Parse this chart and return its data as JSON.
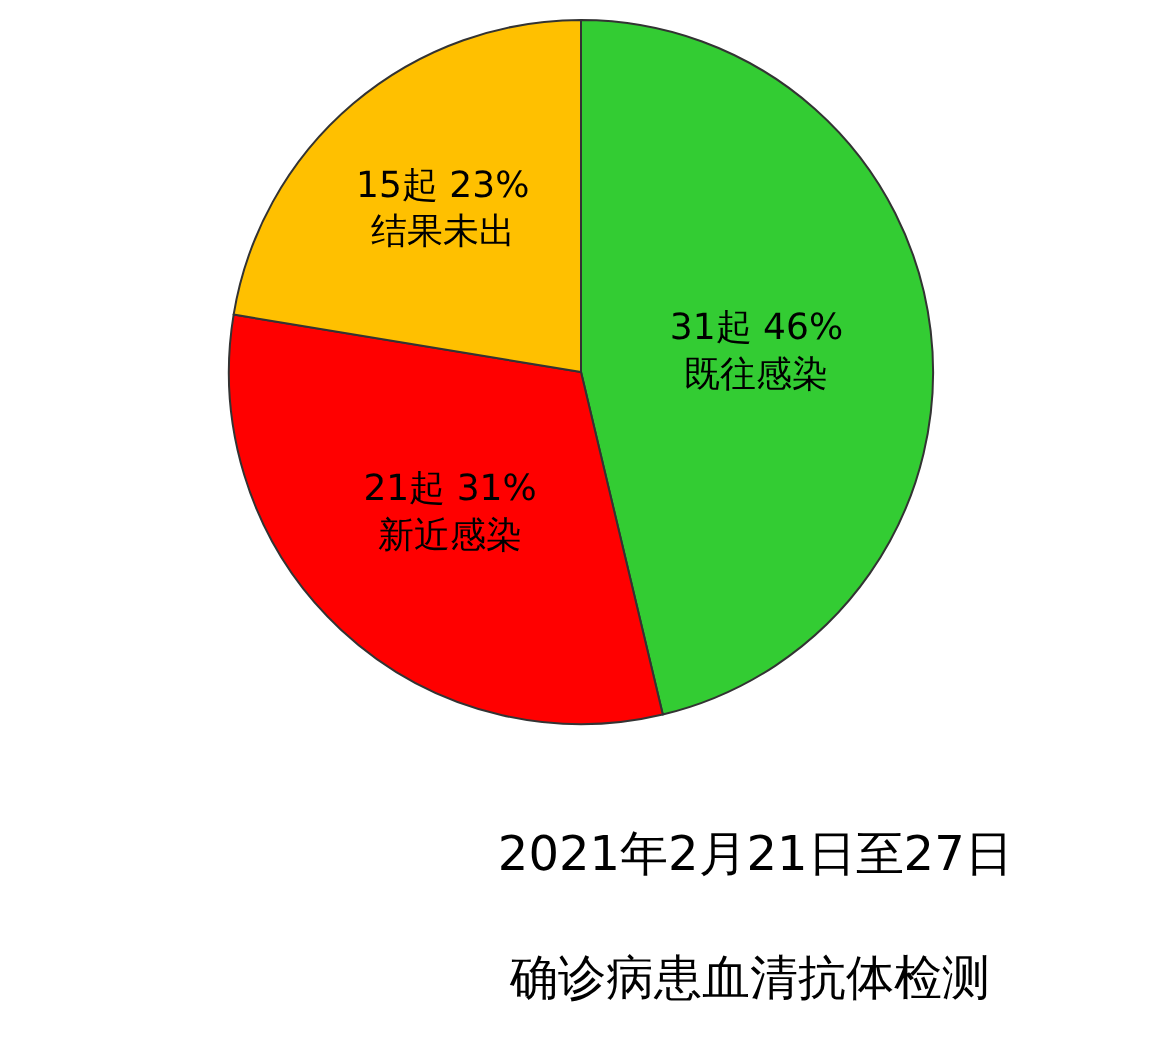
{
  "chart_data": {
    "type": "pie",
    "title": "2021年2月21日至27日",
    "subtitle": "确诊病患血清抗体检测",
    "categories": [
      "既往感染",
      "新近感染",
      "结果未出"
    ],
    "values": [
      31,
      21,
      15
    ],
    "value_labels": [
      "31起 46%",
      "21起 31%",
      "15起 23%"
    ],
    "colors": [
      "#33cc33",
      "#ff0000",
      "#ffc000"
    ],
    "legend": false
  }
}
